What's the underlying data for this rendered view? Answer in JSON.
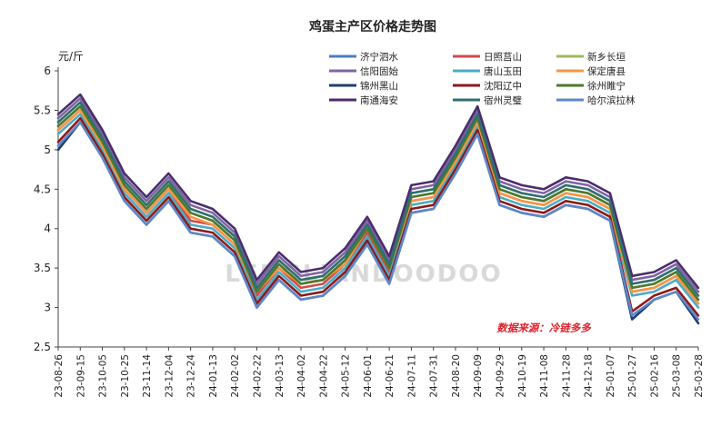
{
  "chart_data": {
    "type": "line",
    "title": "鸡蛋主产区价格走势图",
    "ylabel": "元/斤",
    "ylim": [
      2.5,
      6
    ],
    "yticks": [
      "6",
      "5.5",
      "5",
      "4.5",
      "4",
      "3.5",
      "3",
      "2.5"
    ],
    "grid": false,
    "legend_position": "top-right",
    "source_note": "数据来源：冷链多多",
    "watermark": "LENGLIANDOODOO",
    "x": [
      "23-08-26",
      "23-09-15",
      "23-10-05",
      "23-10-25",
      "23-11-14",
      "23-12-04",
      "23-12-24",
      "24-01-13",
      "24-02-02",
      "24-02-22",
      "24-03-13",
      "24-04-02",
      "24-04-22",
      "24-05-12",
      "24-06-01",
      "24-06-21",
      "24-07-11",
      "24-07-31",
      "24-08-20",
      "24-09-09",
      "24-09-29",
      "24-10-19",
      "24-11-08",
      "24-11-28",
      "24-12-18",
      "25-01-07",
      "25-01-27",
      "25-02-16",
      "25-03-08",
      "25-03-28"
    ],
    "series": [
      {
        "name": "济宁泗水",
        "color": "#4a7cc6",
        "values": [
          5.3,
          5.55,
          5.1,
          4.55,
          4.25,
          4.55,
          4.2,
          4.1,
          3.85,
          3.2,
          3.55,
          3.3,
          3.35,
          3.6,
          4.0,
          3.5,
          4.4,
          4.45,
          4.9,
          5.4,
          4.5,
          4.4,
          4.35,
          4.5,
          4.45,
          4.3,
          3.25,
          3.3,
          3.45,
          3.1
        ]
      },
      {
        "name": "日照莒山",
        "color": "#d24a4a",
        "values": [
          5.25,
          5.5,
          5.05,
          4.5,
          4.2,
          4.5,
          4.1,
          4.05,
          3.8,
          3.15,
          3.5,
          3.25,
          3.3,
          3.55,
          3.95,
          3.45,
          4.35,
          4.4,
          4.85,
          5.35,
          4.45,
          4.35,
          4.3,
          4.45,
          4.4,
          4.25,
          3.2,
          3.25,
          3.4,
          3.05
        ]
      },
      {
        "name": "新乡长垣",
        "color": "#9bbb59",
        "values": [
          5.35,
          5.6,
          5.15,
          4.6,
          4.3,
          4.6,
          4.25,
          4.15,
          3.9,
          3.25,
          3.6,
          3.35,
          3.4,
          3.65,
          4.05,
          3.55,
          4.45,
          4.5,
          4.95,
          5.45,
          4.55,
          4.45,
          4.4,
          4.55,
          4.5,
          4.35,
          3.3,
          3.35,
          3.5,
          3.15
        ]
      },
      {
        "name": "信阳固始",
        "color": "#8064a2",
        "values": [
          5.4,
          5.65,
          5.2,
          4.65,
          4.35,
          4.65,
          4.3,
          4.2,
          3.95,
          3.3,
          3.65,
          3.4,
          3.45,
          3.7,
          4.1,
          3.6,
          4.5,
          4.55,
          5.0,
          5.5,
          4.6,
          4.5,
          4.45,
          4.6,
          4.55,
          4.4,
          3.35,
          3.4,
          3.55,
          3.2
        ]
      },
      {
        "name": "唐山玉田",
        "color": "#4bacc6",
        "values": [
          5.2,
          5.45,
          5.0,
          4.45,
          4.15,
          4.45,
          4.05,
          4.0,
          3.75,
          3.1,
          3.45,
          3.2,
          3.25,
          3.5,
          3.9,
          3.4,
          4.3,
          4.35,
          4.8,
          5.3,
          4.4,
          4.3,
          4.25,
          4.4,
          4.35,
          4.2,
          3.15,
          3.2,
          3.35,
          3.0
        ]
      },
      {
        "name": "保定唐县",
        "color": "#f79646",
        "values": [
          5.25,
          5.5,
          5.05,
          4.5,
          4.2,
          4.5,
          4.15,
          4.05,
          3.8,
          3.2,
          3.5,
          3.3,
          3.35,
          3.55,
          4.0,
          3.5,
          4.35,
          4.4,
          4.85,
          5.35,
          4.45,
          4.35,
          4.3,
          4.45,
          4.4,
          4.25,
          3.2,
          3.25,
          3.4,
          3.05
        ]
      },
      {
        "name": "锦州黑山",
        "color": "#1f3f6e",
        "values": [
          5.0,
          5.35,
          4.9,
          4.35,
          4.05,
          4.35,
          3.95,
          3.9,
          3.65,
          3.0,
          3.35,
          3.1,
          3.15,
          3.4,
          3.8,
          3.3,
          4.2,
          4.25,
          4.7,
          5.2,
          4.3,
          4.2,
          4.15,
          4.3,
          4.25,
          4.1,
          2.85,
          3.1,
          3.2,
          2.8
        ]
      },
      {
        "name": "沈阳辽中",
        "color": "#8b1a1a",
        "values": [
          5.1,
          5.4,
          4.95,
          4.4,
          4.1,
          4.4,
          4.0,
          3.95,
          3.7,
          3.05,
          3.4,
          3.15,
          3.2,
          3.45,
          3.85,
          3.35,
          4.25,
          4.3,
          4.75,
          5.25,
          4.35,
          4.25,
          4.2,
          4.35,
          4.3,
          4.15,
          2.95,
          3.15,
          3.25,
          2.9
        ]
      },
      {
        "name": "徐州睢宁",
        "color": "#4f7a28",
        "values": [
          5.3,
          5.55,
          5.1,
          4.55,
          4.25,
          4.55,
          4.2,
          4.1,
          3.85,
          3.2,
          3.55,
          3.3,
          3.35,
          3.6,
          4.0,
          3.5,
          4.4,
          4.45,
          4.9,
          5.4,
          4.5,
          4.4,
          4.35,
          4.5,
          4.45,
          4.3,
          3.25,
          3.3,
          3.45,
          3.1
        ]
      },
      {
        "name": "南通海安",
        "color": "#4b2d6e",
        "values": [
          5.45,
          5.7,
          5.25,
          4.7,
          4.4,
          4.7,
          4.35,
          4.25,
          4.0,
          3.35,
          3.7,
          3.45,
          3.5,
          3.75,
          4.15,
          3.65,
          4.55,
          4.6,
          5.05,
          5.55,
          4.65,
          4.55,
          4.5,
          4.65,
          4.6,
          4.45,
          3.4,
          3.45,
          3.6,
          3.25
        ]
      },
      {
        "name": "宿州灵璧",
        "color": "#2f6f73",
        "values": [
          5.35,
          5.6,
          5.15,
          4.6,
          4.3,
          4.6,
          4.25,
          4.15,
          3.9,
          3.25,
          3.6,
          3.35,
          3.4,
          3.65,
          4.05,
          3.55,
          4.45,
          4.5,
          4.95,
          5.45,
          4.55,
          4.45,
          4.4,
          4.55,
          4.5,
          4.35,
          3.3,
          3.35,
          3.5,
          3.15
        ]
      },
      {
        "name": "哈尔滨拉林",
        "color": "#5d88c9",
        "values": [
          5.05,
          5.35,
          4.9,
          4.35,
          4.05,
          4.35,
          3.95,
          3.9,
          3.65,
          3.0,
          3.35,
          3.1,
          3.15,
          3.4,
          3.8,
          3.3,
          4.2,
          4.25,
          4.7,
          5.2,
          4.3,
          4.2,
          4.15,
          4.3,
          4.25,
          4.1,
          2.9,
          3.1,
          3.2,
          2.85
        ]
      }
    ]
  }
}
